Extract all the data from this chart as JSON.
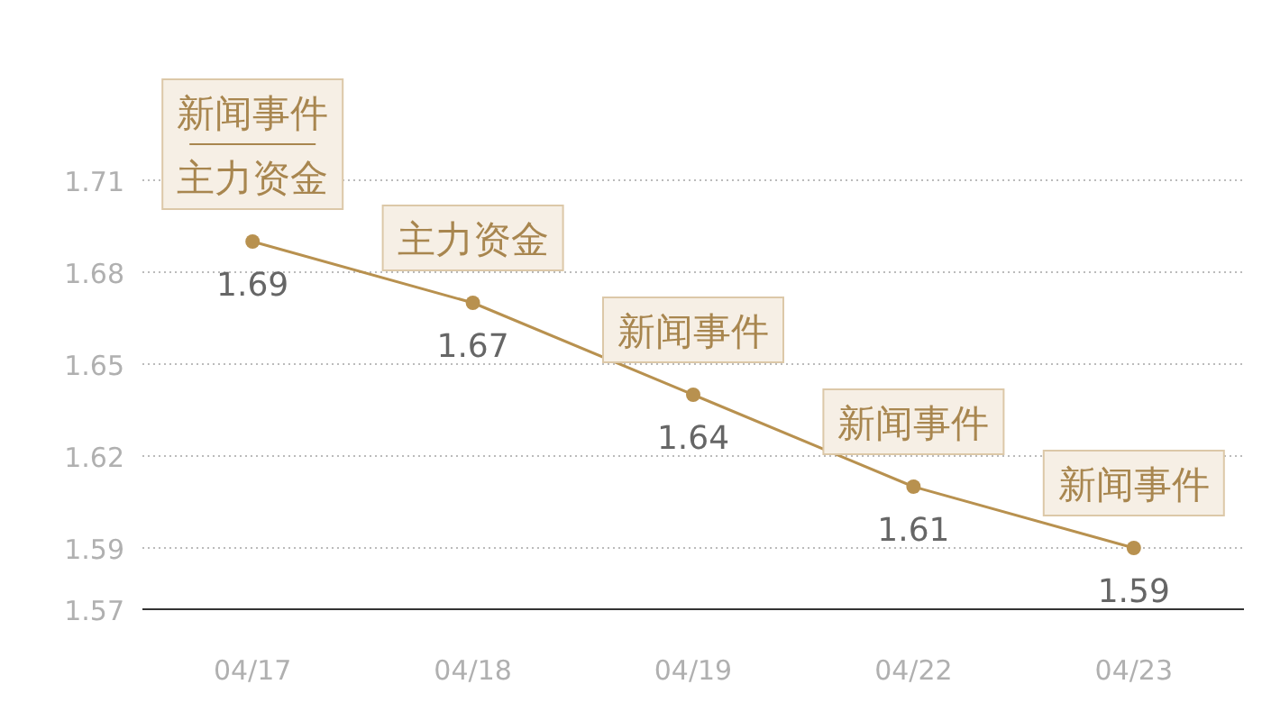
{
  "chart_data": {
    "type": "line",
    "categories": [
      "04/17",
      "04/18",
      "04/19",
      "04/22",
      "04/23"
    ],
    "series": [
      {
        "color": "#b8914f",
        "values": [
          1.69,
          1.67,
          1.64,
          1.61,
          1.59
        ]
      }
    ],
    "ylim": [
      1.57,
      1.71
    ],
    "yticks": [
      1.57,
      1.59,
      1.62,
      1.65,
      1.68,
      1.71
    ],
    "grid": "y",
    "marker": "circle",
    "line_style": "solid",
    "data_labels": true,
    "annotations": [
      {
        "text": "新闻事件",
        "x": "04/17",
        "y": 1.69
      },
      {
        "text": "主力资金",
        "x": "04/17",
        "y": 1.69
      },
      {
        "text": "主力资金",
        "x": "04/18",
        "y": 1.67
      },
      {
        "text": "新闻事件",
        "x": "04/19",
        "y": 1.64
      },
      {
        "text": "新闻事件",
        "x": "04/22",
        "y": 1.61
      },
      {
        "text": "新闻事件",
        "x": "04/23",
        "y": 1.59
      }
    ]
  }
}
